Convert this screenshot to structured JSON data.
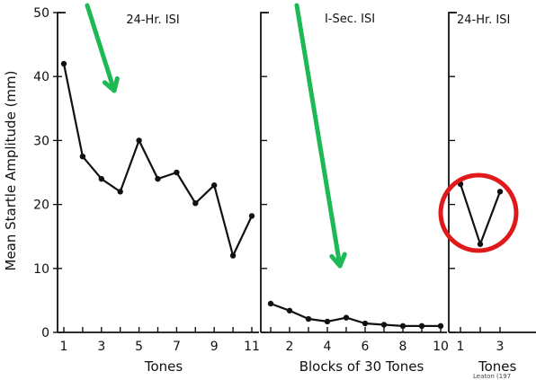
{
  "chart_data": [
    {
      "type": "line",
      "title": "24-Hr. ISI",
      "xlabel": "Tones",
      "ylabel": "Mean Startle Amplitude (mm)",
      "ylim": [
        0,
        50
      ],
      "yticks": [
        0,
        10,
        20,
        30,
        40,
        50
      ],
      "xlim": [
        0.5,
        11.3
      ],
      "xticks": [
        1,
        3,
        5,
        7,
        9,
        11
      ],
      "x": [
        1,
        2,
        3,
        4,
        5,
        6,
        7,
        8,
        9,
        10,
        11
      ],
      "values": [
        42,
        27.5,
        24,
        22,
        30,
        24,
        25,
        20.2,
        23,
        12,
        18.2
      ]
    },
    {
      "type": "line",
      "title": "I-Sec. ISI",
      "xlabel": "Blocks of 30 Tones",
      "ylim": [
        0,
        50
      ],
      "xlim": [
        0.5,
        10.2
      ],
      "xticks": [
        2,
        4,
        6,
        8,
        10
      ],
      "x": [
        1,
        2,
        3,
        4,
        5,
        6,
        7,
        8,
        9,
        10
      ],
      "values": [
        4.5,
        3.4,
        2.1,
        1.7,
        2.3,
        1.4,
        1.2,
        1.0,
        1.0,
        1.0
      ]
    },
    {
      "type": "line",
      "title": "24-Hr. ISI",
      "xlabel": "Tones",
      "ylim": [
        0,
        50
      ],
      "xlim": [
        0.6,
        3.8
      ],
      "xticks": [
        1,
        3
      ],
      "x": [
        1,
        2,
        3
      ],
      "values": [
        23.2,
        13.8,
        22
      ]
    }
  ],
  "annotations": {
    "arrow_color": "#1db954",
    "circle_color": "#e0191b",
    "credit": "Leaton (197"
  }
}
